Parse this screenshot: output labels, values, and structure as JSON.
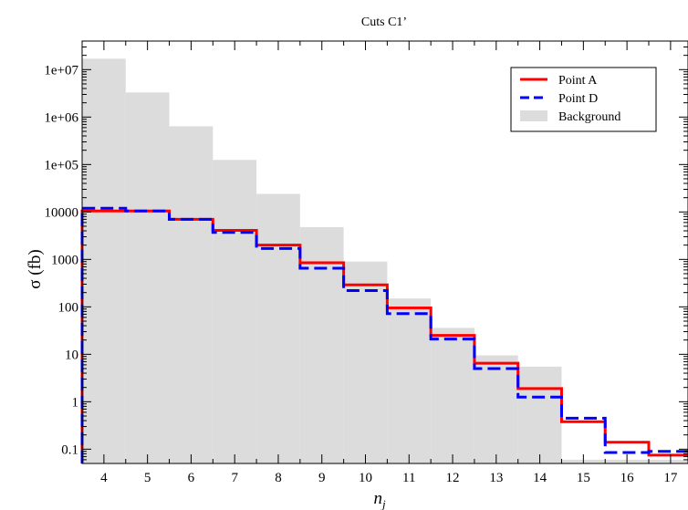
{
  "chart_data": {
    "type": "histogram-step",
    "title": "Cuts C1’",
    "xlabel_main": "n",
    "xlabel_sub": "j",
    "ylabel": "σ (fb)",
    "yscale": "log",
    "xlim": [
      3.5,
      17.4
    ],
    "ylim": [
      0.05,
      40000000
    ],
    "x_ticks": [
      4,
      5,
      6,
      7,
      8,
      9,
      10,
      11,
      12,
      13,
      14,
      15,
      16,
      17
    ],
    "y_ticks": [
      {
        "value": 0.1,
        "label": "0.1"
      },
      {
        "value": 1,
        "label": "1"
      },
      {
        "value": 10,
        "label": "10"
      },
      {
        "value": 100,
        "label": "100"
      },
      {
        "value": 1000,
        "label": "1000"
      },
      {
        "value": 10000,
        "label": "10000"
      },
      {
        "value": 100000,
        "label": "1e+05"
      },
      {
        "value": 1000000,
        "label": "1e+06"
      },
      {
        "value": 10000000,
        "label": "1e+07"
      }
    ],
    "grid": false,
    "legend_position": "top-right",
    "background": {
      "name": "Background",
      "color": "#dcdcdc",
      "bins": [
        {
          "x0": 3.5,
          "x1": 4.5,
          "value": 17000000
        },
        {
          "x0": 4.5,
          "x1": 5.5,
          "value": 3300000
        },
        {
          "x0": 5.5,
          "x1": 6.5,
          "value": 640000
        },
        {
          "x0": 6.5,
          "x1": 7.5,
          "value": 125000
        },
        {
          "x0": 7.5,
          "x1": 8.5,
          "value": 24000
        },
        {
          "x0": 8.5,
          "x1": 9.5,
          "value": 4800
        },
        {
          "x0": 9.5,
          "x1": 10.5,
          "value": 900
        },
        {
          "x0": 10.5,
          "x1": 11.5,
          "value": 150
        },
        {
          "x0": 11.5,
          "x1": 12.5,
          "value": 36
        },
        {
          "x0": 12.5,
          "x1": 13.5,
          "value": 9.5
        },
        {
          "x0": 13.5,
          "x1": 14.5,
          "value": 5.5
        },
        {
          "x0": 14.5,
          "x1": 17.4,
          "value": 0.06
        }
      ]
    },
    "series": [
      {
        "name": "Point A",
        "color": "#ff0000",
        "dashed": false,
        "bins": [
          {
            "x0": 3.5,
            "x1": 4.5,
            "value": 10500
          },
          {
            "x0": 4.5,
            "x1": 5.5,
            "value": 10500
          },
          {
            "x0": 5.5,
            "x1": 6.5,
            "value": 7000
          },
          {
            "x0": 6.5,
            "x1": 7.5,
            "value": 4100
          },
          {
            "x0": 7.5,
            "x1": 8.5,
            "value": 2000
          },
          {
            "x0": 8.5,
            "x1": 9.5,
            "value": 850
          },
          {
            "x0": 9.5,
            "x1": 10.5,
            "value": 290
          },
          {
            "x0": 10.5,
            "x1": 11.5,
            "value": 95
          },
          {
            "x0": 11.5,
            "x1": 12.5,
            "value": 25
          },
          {
            "x0": 12.5,
            "x1": 13.5,
            "value": 6.5
          },
          {
            "x0": 13.5,
            "x1": 14.5,
            "value": 1.9
          },
          {
            "x0": 14.5,
            "x1": 15.5,
            "value": 0.38
          },
          {
            "x0": 15.5,
            "x1": 16.5,
            "value": 0.14
          },
          {
            "x0": 16.5,
            "x1": 17.4,
            "value": 0.075
          }
        ]
      },
      {
        "name": "Point D",
        "color": "#0000ff",
        "dashed": true,
        "bins": [
          {
            "x0": 3.5,
            "x1": 4.5,
            "value": 12000
          },
          {
            "x0": 4.5,
            "x1": 5.5,
            "value": 10500
          },
          {
            "x0": 5.5,
            "x1": 6.5,
            "value": 7000
          },
          {
            "x0": 6.5,
            "x1": 7.5,
            "value": 3700
          },
          {
            "x0": 7.5,
            "x1": 8.5,
            "value": 1700
          },
          {
            "x0": 8.5,
            "x1": 9.5,
            "value": 650
          },
          {
            "x0": 9.5,
            "x1": 10.5,
            "value": 220
          },
          {
            "x0": 10.5,
            "x1": 11.5,
            "value": 72
          },
          {
            "x0": 11.5,
            "x1": 12.5,
            "value": 21
          },
          {
            "x0": 12.5,
            "x1": 13.5,
            "value": 5
          },
          {
            "x0": 13.5,
            "x1": 14.5,
            "value": 1.25
          },
          {
            "x0": 14.5,
            "x1": 15.5,
            "value": 0.45
          },
          {
            "x0": 15.5,
            "x1": 16.5,
            "value": 0.085
          },
          {
            "x0": 16.5,
            "x1": 17.4,
            "value": 0.09
          }
        ]
      }
    ]
  }
}
